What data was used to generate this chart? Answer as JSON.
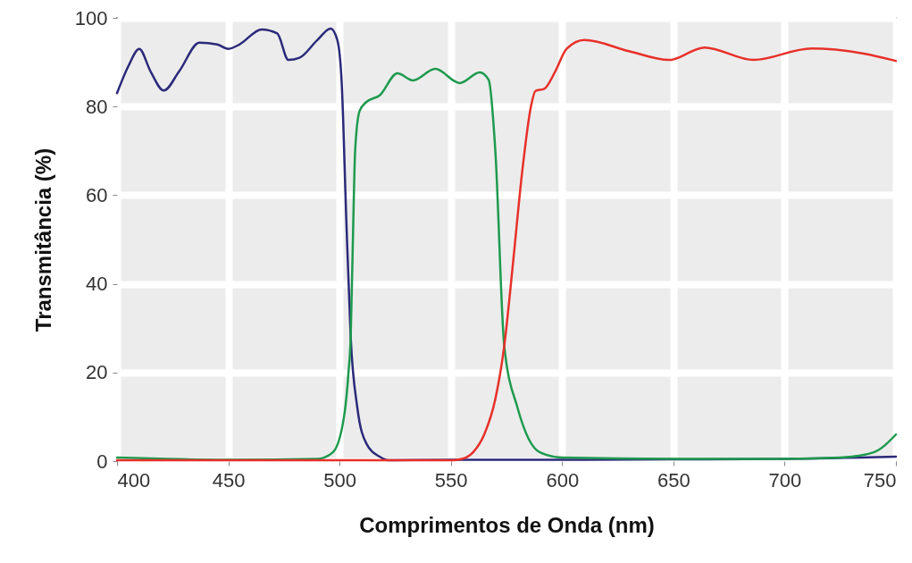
{
  "chart_data": {
    "type": "line",
    "xlabel": "Comprimentos de Onda (nm)",
    "ylabel": "Transmitância (%)",
    "xlim": [
      400,
      750
    ],
    "ylim": [
      0,
      100
    ],
    "xticks": [
      400,
      450,
      500,
      550,
      600,
      650,
      700,
      750
    ],
    "yticks": [
      0,
      20,
      40,
      60,
      80,
      100
    ],
    "grid": true,
    "marker": "none",
    "line_style": "solid",
    "series": [
      {
        "color": "#2b2a7a",
        "x": [
          400,
          405,
          410,
          415,
          421,
          428,
          437,
          445,
          450,
          455,
          465,
          472,
          477,
          482,
          490,
          496,
          499,
          501,
          503,
          505,
          508,
          512,
          518,
          522,
          550,
          600,
          650,
          700,
          750
        ],
        "values": [
          83,
          89,
          93,
          88,
          83.6,
          88,
          94.4,
          94,
          93,
          94,
          97.4,
          96.5,
          90.5,
          91,
          95,
          97.6,
          95,
          85,
          55,
          28,
          12,
          4,
          1,
          0.2,
          0.3,
          0.3,
          0.4,
          0.5,
          1
        ]
      },
      {
        "color": "#1e9a4e",
        "x": [
          400,
          450,
          490,
          497,
          502,
          504,
          505,
          506,
          507,
          509,
          512,
          518,
          526,
          533,
          543,
          554,
          563,
          567,
          570,
          574,
          580,
          585,
          590,
          600,
          650,
          700,
          725,
          740,
          750
        ],
        "values": [
          0.8,
          0.3,
          0.5,
          2,
          10,
          20,
          28,
          50,
          70,
          79,
          81,
          82.5,
          87.5,
          85.9,
          88.5,
          85.3,
          87.7,
          86,
          70,
          26,
          12,
          5,
          2,
          0.8,
          0.5,
          0.5,
          0.8,
          2,
          6
        ]
      },
      {
        "color": "#e8302a",
        "x": [
          400,
          450,
          500,
          550,
          555,
          560,
          565,
          570,
          574,
          578,
          582,
          586,
          588,
          592,
          597,
          602,
          610,
          630,
          648,
          664,
          686,
          712,
          735,
          750
        ],
        "values": [
          0.2,
          0.2,
          0.2,
          0.2,
          0.5,
          2,
          6,
          14,
          26,
          45,
          65,
          80,
          83.5,
          84,
          88,
          93,
          95,
          92.5,
          90.5,
          93.3,
          90.5,
          93.1,
          92,
          90.3
        ]
      }
    ]
  }
}
